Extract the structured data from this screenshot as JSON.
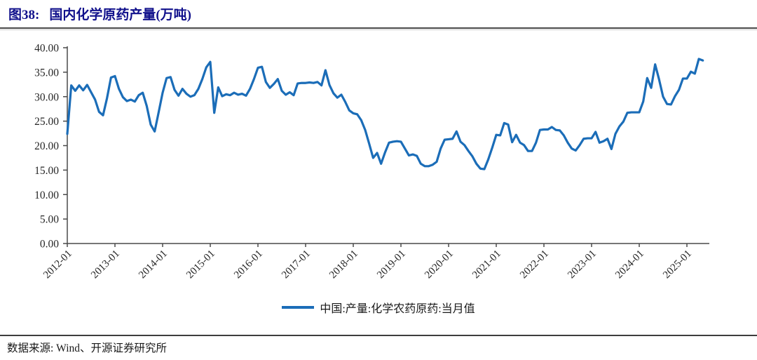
{
  "colors": {
    "line": "#1B6DB8",
    "title": "#11118C",
    "axis": "#4a4a4a",
    "tick_text": "#262626"
  },
  "header": {
    "figure_label": "图38:",
    "title": "国内化学原药产量(万吨)"
  },
  "legend": {
    "label": "中国:产量:化学农药原药:当月值"
  },
  "footer": {
    "source": "数据来源: Wind、开源证券研究所"
  },
  "chart_data": {
    "type": "line",
    "title": "国内化学原药产量(万吨)",
    "unit": "万吨",
    "grid": false,
    "legend_position": "bottom",
    "ylim": [
      0,
      40
    ],
    "y_tick_step": 5,
    "y_tick_labels": [
      "0.00",
      "5.00",
      "10.00",
      "15.00",
      "20.00",
      "25.00",
      "30.00",
      "35.00",
      "40.00"
    ],
    "x_tick_labels": [
      "2012-01",
      "2013-01",
      "2014-01",
      "2015-01",
      "2016-01",
      "2017-01",
      "2018-01",
      "2019-01",
      "2020-01",
      "2021-01",
      "2022-01",
      "2023-01",
      "2024-01",
      "2025-01"
    ],
    "x_start": "2012-01",
    "x_end": "2025-05",
    "x_frequency": "monthly",
    "series": [
      {
        "name": "中国:产量:化学农药原药:当月值",
        "color": "#1B6DB8",
        "values": [
          22.4,
          32.3,
          31.2,
          32.3,
          31.3,
          32.4,
          30.9,
          29.4,
          26.9,
          26.2,
          29.7,
          33.9,
          34.2,
          31.6,
          29.9,
          29.1,
          29.4,
          29.0,
          30.3,
          30.8,
          28.1,
          24.3,
          22.9,
          26.8,
          30.8,
          33.8,
          34.0,
          31.4,
          30.2,
          31.6,
          30.6,
          30.0,
          30.3,
          31.6,
          33.6,
          36.0,
          37.1,
          26.7,
          31.9,
          30.1,
          30.5,
          30.3,
          30.8,
          30.4,
          30.6,
          30.2,
          31.6,
          33.6,
          35.9,
          36.1,
          33.0,
          31.8,
          32.6,
          33.6,
          31.2,
          30.4,
          30.9,
          30.3,
          32.7,
          32.8,
          32.8,
          32.9,
          32.8,
          33.0,
          32.3,
          35.4,
          32.4,
          30.7,
          29.8,
          30.4,
          28.9,
          27.2,
          26.6,
          26.4,
          25.2,
          23.2,
          20.4,
          17.5,
          18.5,
          16.3,
          18.6,
          20.6,
          20.8,
          20.9,
          20.8,
          19.4,
          18.0,
          18.2,
          17.9,
          16.3,
          15.8,
          15.8,
          16.1,
          16.7,
          19.4,
          21.2,
          21.3,
          21.4,
          22.9,
          20.8,
          20.1,
          18.9,
          17.8,
          16.3,
          15.3,
          15.2,
          17.2,
          19.6,
          22.2,
          22.1,
          24.6,
          24.3,
          20.7,
          22.2,
          20.6,
          20.1,
          18.9,
          18.9,
          20.6,
          23.2,
          23.3,
          23.3,
          23.8,
          23.2,
          23.1,
          22.1,
          20.6,
          19.4,
          19.0,
          20.1,
          21.4,
          21.5,
          21.5,
          22.8,
          20.6,
          20.9,
          21.4,
          19.3,
          22.4,
          23.9,
          24.9,
          26.7,
          26.8,
          26.8,
          26.8,
          29.0,
          33.8,
          31.8,
          36.6,
          33.5,
          30.0,
          28.5,
          28.4,
          30.1,
          31.4,
          33.7,
          33.7,
          35.1,
          34.7,
          37.7,
          37.4
        ]
      }
    ]
  }
}
